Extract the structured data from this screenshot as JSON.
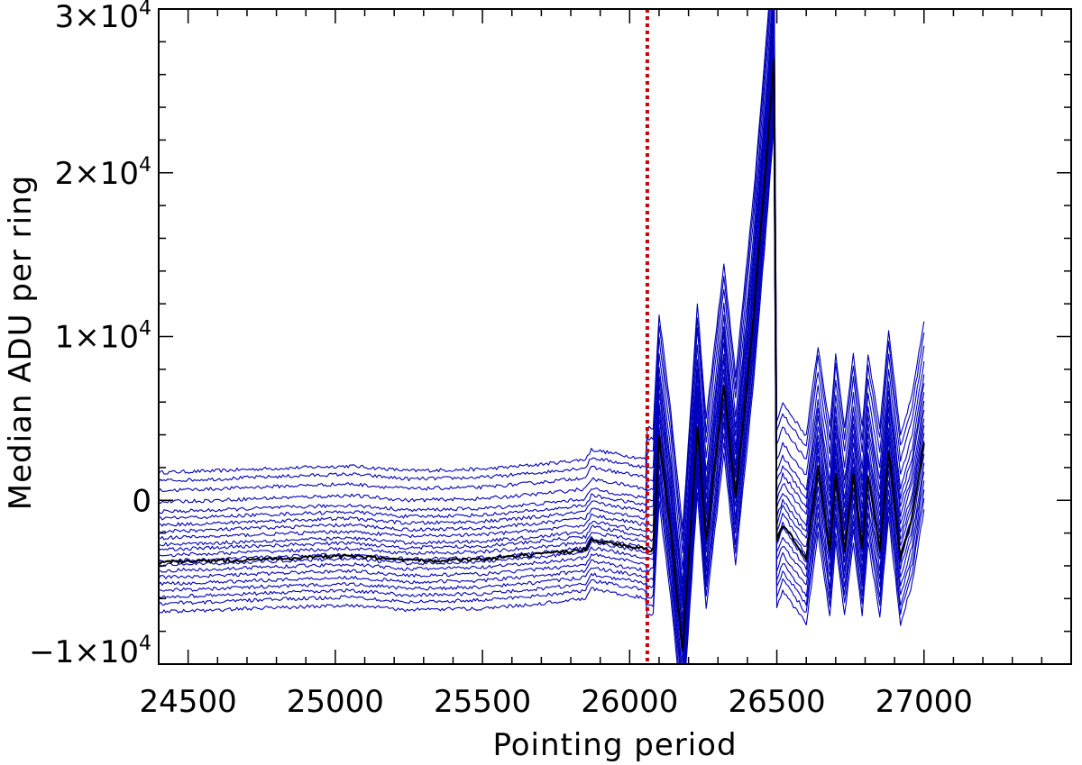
{
  "chart_data": {
    "type": "line",
    "title": "",
    "xlabel": "Pointing period",
    "ylabel": "Median ADU per ring",
    "xlim": [
      24400,
      27500
    ],
    "ylim": [
      -10000,
      30000
    ],
    "x_ticks": [
      {
        "value": 24500,
        "label": "24500"
      },
      {
        "value": 25000,
        "label": "25000"
      },
      {
        "value": 25500,
        "label": "25500"
      },
      {
        "value": 26000,
        "label": "26000"
      },
      {
        "value": 26500,
        "label": "26500"
      },
      {
        "value": 27000,
        "label": "27000"
      }
    ],
    "y_ticks": [
      {
        "value": -10000,
        "label": "−1×10",
        "exp": "4"
      },
      {
        "value": 0,
        "label": "0",
        "exp": ""
      },
      {
        "value": 10000,
        "label": "1×10",
        "exp": "4"
      },
      {
        "value": 20000,
        "label": "2×10",
        "exp": "4"
      },
      {
        "value": 30000,
        "label": "3×10",
        "exp": "4"
      }
    ],
    "x_minor_step": 100,
    "y_minor_step": 2000,
    "vline": {
      "x": 26060,
      "color": "#cc0000",
      "style": "dotted"
    },
    "series_color": "#0000bb",
    "median_color": "#000000",
    "base_points": [
      [
        24400,
        -3800
      ],
      [
        24600,
        -3700
      ],
      [
        24720,
        -3600
      ],
      [
        25050,
        -3400
      ],
      [
        25250,
        -3700
      ],
      [
        25500,
        -3600
      ],
      [
        25700,
        -3300
      ],
      [
        25850,
        -3000
      ],
      [
        25870,
        -2400
      ],
      [
        26060,
        -3000
      ],
      [
        26080,
        -3000
      ],
      [
        26100,
        4000
      ],
      [
        26140,
        -2000
      ],
      [
        26180,
        -9200
      ],
      [
        26230,
        4500
      ],
      [
        26260,
        -2500
      ],
      [
        26320,
        7000
      ],
      [
        26360,
        200
      ],
      [
        26420,
        11000
      ],
      [
        26470,
        22000
      ],
      [
        26490,
        27000
      ],
      [
        26500,
        -2500
      ],
      [
        26520,
        -1500
      ],
      [
        26600,
        -3500
      ],
      [
        26640,
        2000
      ],
      [
        26680,
        -3000
      ],
      [
        26700,
        1500
      ],
      [
        26730,
        -3000
      ],
      [
        26760,
        1500
      ],
      [
        26790,
        -3000
      ],
      [
        26810,
        1500
      ],
      [
        26850,
        -3000
      ],
      [
        26880,
        3000
      ],
      [
        26920,
        -3500
      ],
      [
        26960,
        -1000
      ],
      [
        27000,
        3500
      ]
    ],
    "offsets": [
      5500,
      5000,
      4400,
      3700,
      3100,
      2700,
      2300,
      1900,
      1500,
      1100,
      800,
      450,
      100,
      -150,
      -500,
      -900,
      -1300,
      -1700,
      -2100,
      -2500,
      -3000
    ],
    "spread_after": 0.35
  }
}
